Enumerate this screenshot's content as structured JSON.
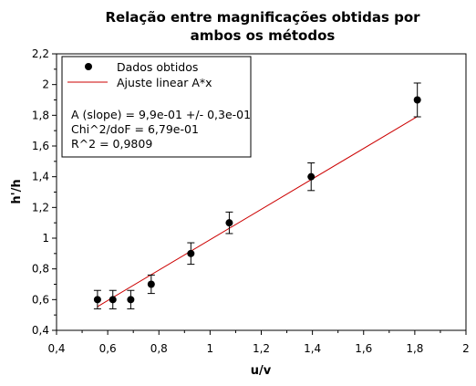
{
  "chart_data": {
    "type": "scatter",
    "title_lines": [
      "Relação entre magnificações obtidas por",
      "ambos os métodos"
    ],
    "xlabel": "u/v",
    "ylabel": "h'/h",
    "xlim": [
      0.4,
      2.0
    ],
    "ylim": [
      0.4,
      2.2
    ],
    "x_ticks": [
      0.4,
      0.6,
      0.8,
      1.0,
      1.2,
      1.4,
      1.6,
      1.8,
      2.0
    ],
    "x_tick_labels": [
      "0,4",
      "0,6",
      "0,8",
      "1",
      "1,2",
      "1,4",
      "1,6",
      "1,8",
      "2"
    ],
    "y_ticks": [
      0.4,
      0.6,
      0.8,
      1.0,
      1.2,
      1.4,
      1.6,
      1.8,
      2.0,
      2.2
    ],
    "y_tick_labels": [
      "0,4",
      "0,6",
      "0,8",
      "1",
      "1,2",
      "1,4",
      "1,6",
      "1,8",
      "2",
      "2,2"
    ],
    "grid": false,
    "legend_position": "top-left",
    "series": [
      {
        "name": "Dados obtidos",
        "color": "#000000",
        "points": [
          {
            "x": 0.56,
            "y": 0.6,
            "err": 0.06
          },
          {
            "x": 0.62,
            "y": 0.6,
            "err": 0.06
          },
          {
            "x": 0.69,
            "y": 0.6,
            "err": 0.06
          },
          {
            "x": 0.77,
            "y": 0.7,
            "err": 0.06
          },
          {
            "x": 0.925,
            "y": 0.9,
            "err": 0.07
          },
          {
            "x": 1.075,
            "y": 1.1,
            "err": 0.07
          },
          {
            "x": 1.395,
            "y": 1.4,
            "err": 0.09
          },
          {
            "x": 1.81,
            "y": 1.9,
            "err": 0.11
          }
        ]
      }
    ],
    "fit": {
      "name": "Ajuste linear A*x",
      "color": "#cc0000",
      "slope": 0.99,
      "x_range": [
        0.56,
        1.81
      ]
    },
    "annotations": [
      "A (slope) = 9,9e-01 +/- 0,3e-01",
      "Chi^2/doF = 6,79e-01",
      "R^2 = 0,9809"
    ]
  }
}
